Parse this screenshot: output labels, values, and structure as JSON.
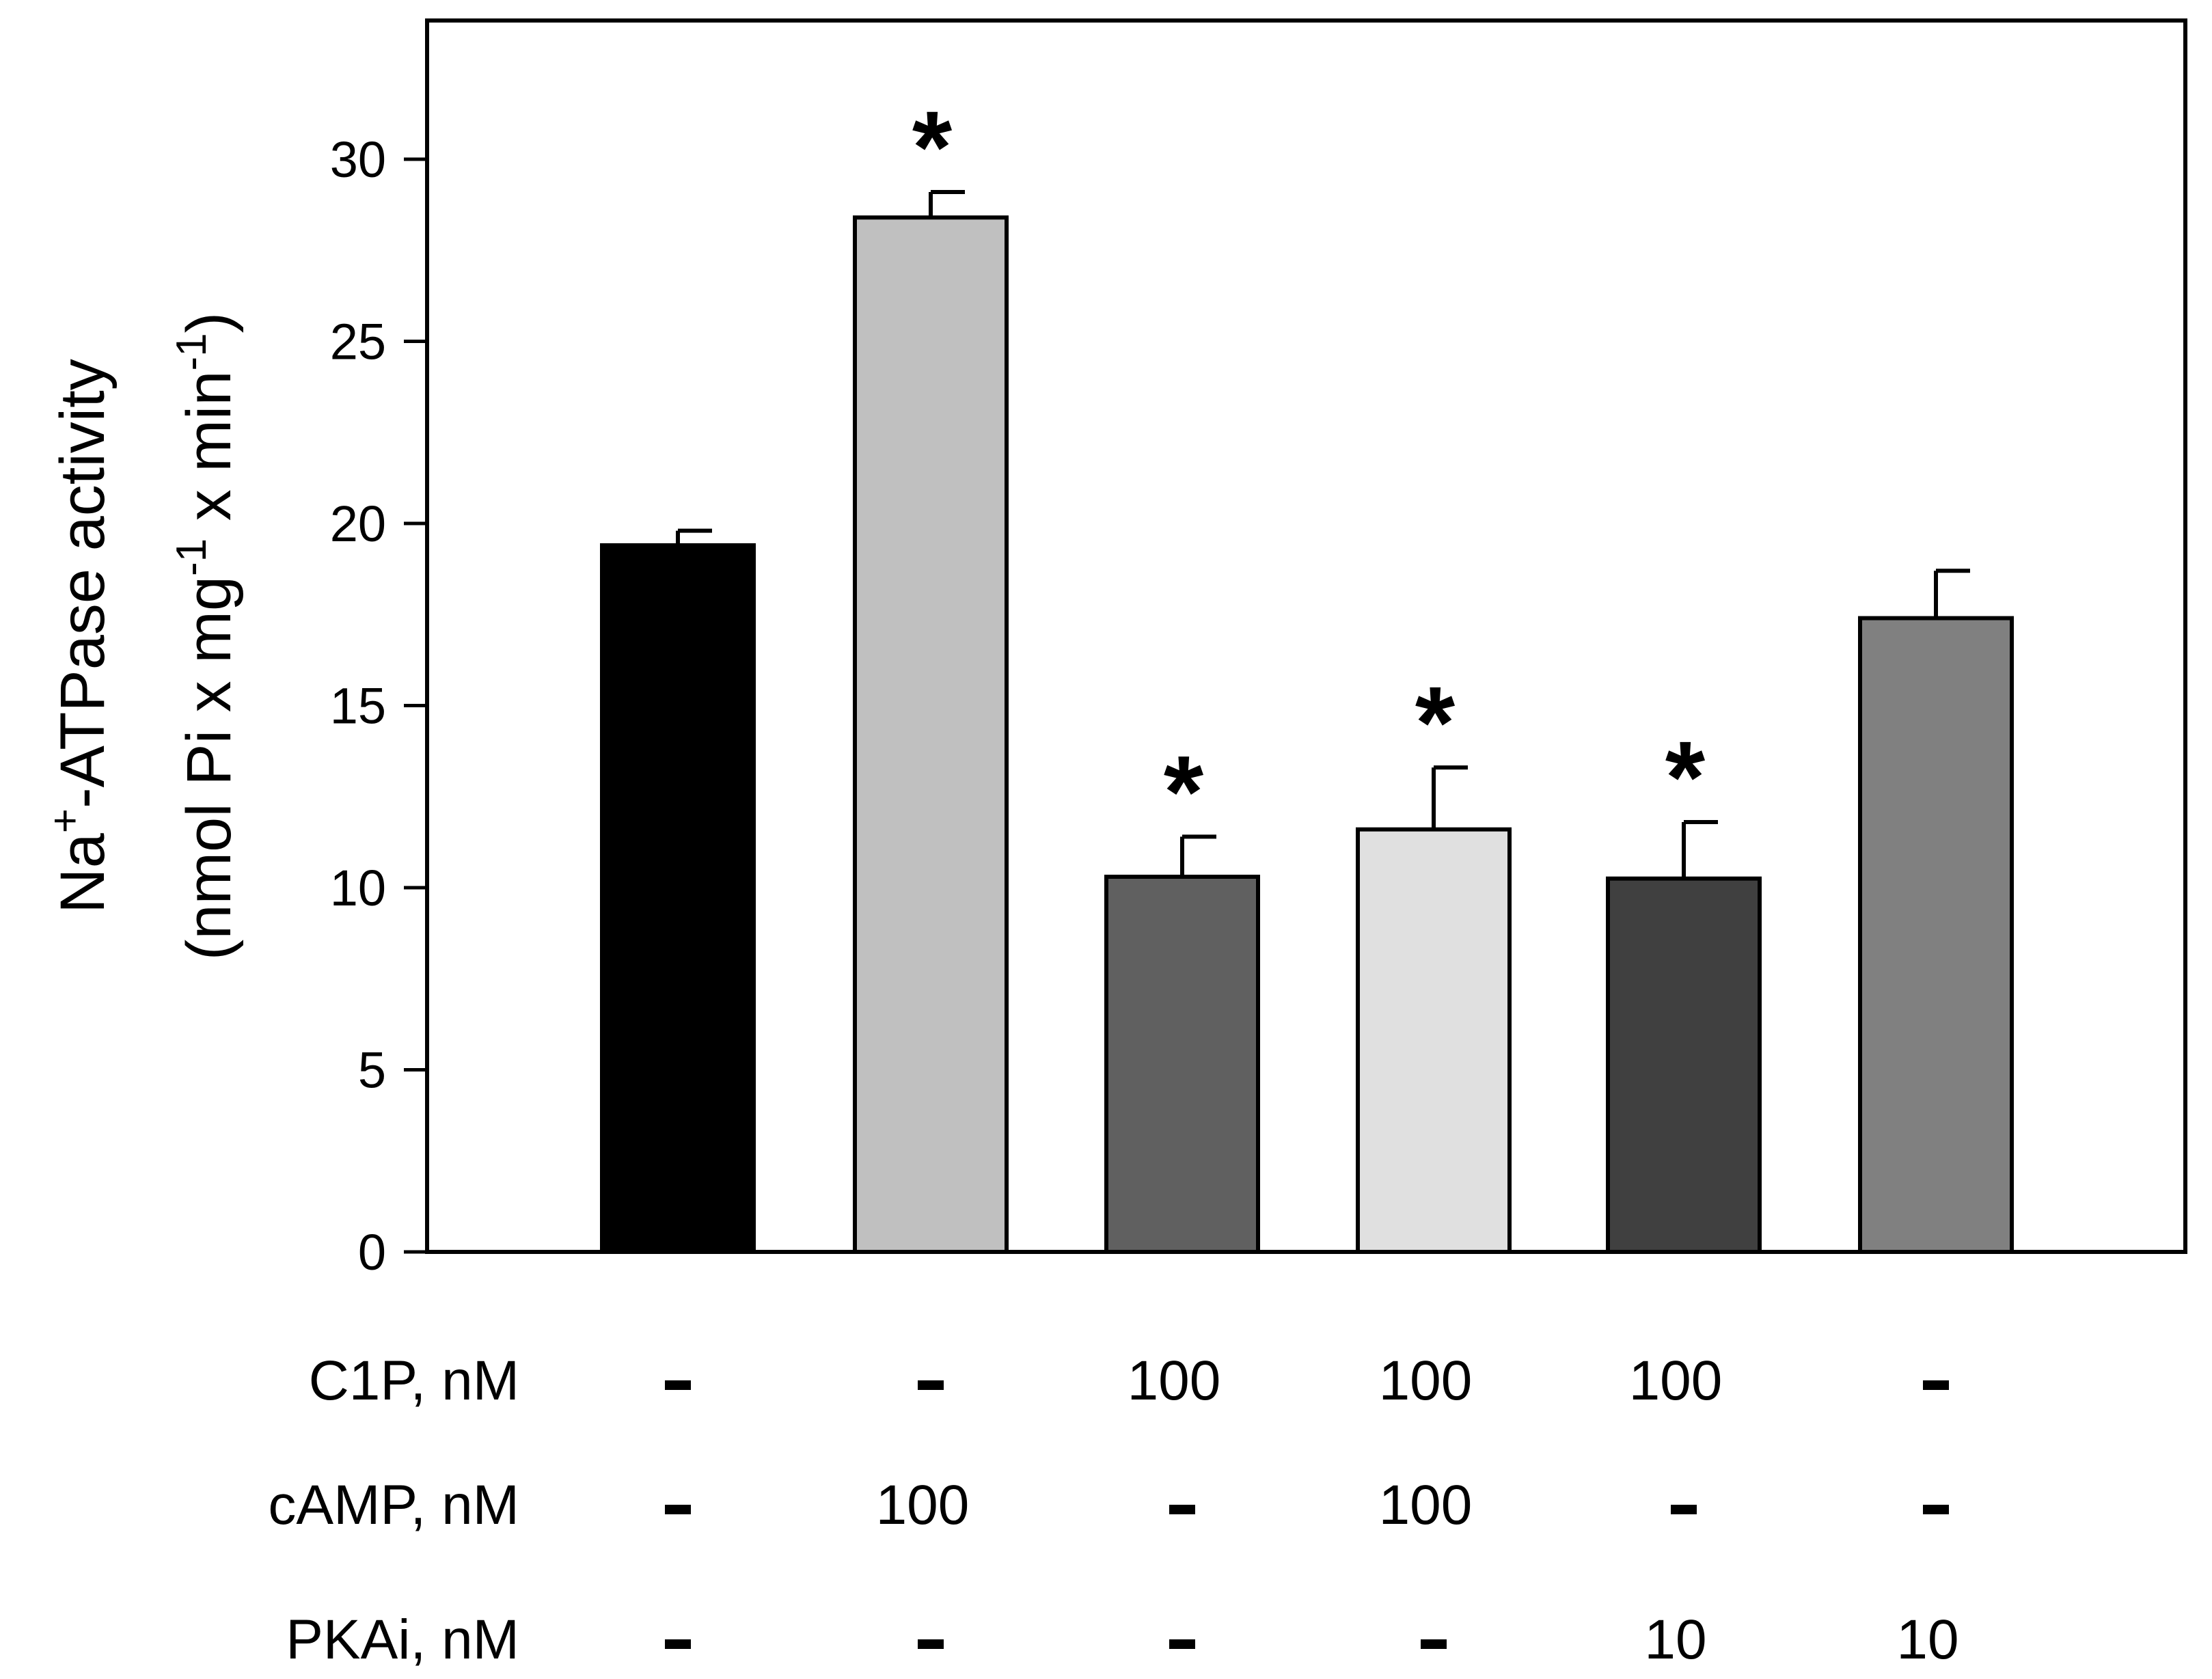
{
  "chart_data": {
    "type": "bar",
    "ylabel_main": "Na",
    "ylabel_sup1": "+",
    "ylabel_rest": "-ATPase activity",
    "ylabel_units": [
      {
        "t": "(nmol Pi x mg",
        "sup": false
      },
      {
        "t": "-1",
        "sup": true
      },
      {
        "t": " x min",
        "sup": false
      },
      {
        "t": "-1",
        "sup": true
      },
      {
        "t": ")",
        "sup": false
      }
    ],
    "ylim": [
      0,
      35
    ],
    "yticks": [
      0,
      5,
      10,
      15,
      20,
      25,
      30
    ],
    "ytick_labels": [
      "0",
      "5",
      "10",
      "15",
      "20",
      "25",
      "30"
    ],
    "bars": [
      {
        "value": 19.4,
        "error": 0.4,
        "color": "#000000",
        "marker": ""
      },
      {
        "value": 28.4,
        "error": 0.7,
        "color": "#c0c0c0",
        "marker": "*"
      },
      {
        "value": 10.3,
        "error": 1.1,
        "color": "#606060",
        "marker": "*"
      },
      {
        "value": 11.6,
        "error": 1.7,
        "color": "#e0e0e0",
        "marker": "*"
      },
      {
        "value": 10.25,
        "error": 1.55,
        "color": "#404040",
        "marker": "*"
      },
      {
        "value": 17.4,
        "error": 1.3,
        "color": "#808080",
        "marker": ""
      }
    ],
    "treatment_table": {
      "rows": [
        {
          "label": "C1P, nM",
          "values": [
            "-",
            "-",
            "100",
            "100",
            "100",
            "-"
          ]
        },
        {
          "label": "cAMP, nM",
          "values": [
            "-",
            "100",
            "-",
            "100",
            "-",
            "-"
          ]
        },
        {
          "label": "PKAi, nM",
          "values": [
            "-",
            "-",
            "-",
            "-",
            "10",
            "10"
          ]
        }
      ]
    }
  }
}
